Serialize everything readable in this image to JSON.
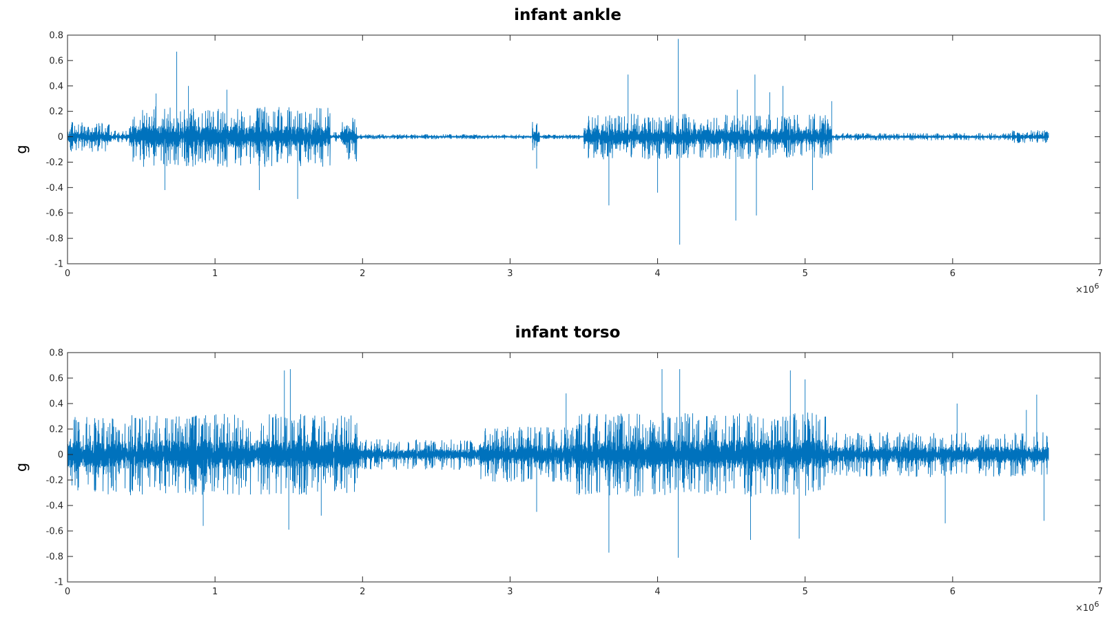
{
  "colors": {
    "series": "#0072BD",
    "axis": "#262626"
  },
  "chart_data": [
    {
      "type": "line",
      "title": "infant ankle",
      "ylabel": "g",
      "xlabel": "",
      "xlim": [
        0,
        7000000
      ],
      "ylim": [
        -1,
        0.8
      ],
      "x_multiplier": "×10",
      "x_multiplier_exp": "6",
      "xticks": [
        0,
        1,
        2,
        3,
        4,
        5,
        6,
        7
      ],
      "yticks": [
        -1,
        -0.8,
        -0.6,
        -0.4,
        -0.2,
        0,
        0.2,
        0.4,
        0.6,
        0.8
      ],
      "xtick_labels": [
        "0",
        "1",
        "2",
        "3",
        "4",
        "5",
        "6",
        "7"
      ],
      "ytick_labels": [
        "-1",
        "-0.8",
        "-0.6",
        "-0.4",
        "-0.2",
        "0",
        "0.2",
        "0.4",
        "0.6",
        "0.8"
      ],
      "data_end": 6650000,
      "envelope_segments": [
        {
          "x": [
            0,
            300000
          ],
          "amp": 0.12
        },
        {
          "x": [
            300000,
            420000
          ],
          "amp": 0.05
        },
        {
          "x": [
            420000,
            1780000
          ],
          "amp": 0.24
        },
        {
          "x": [
            1780000,
            1860000
          ],
          "amp": 0.04
        },
        {
          "x": [
            1860000,
            1960000
          ],
          "amp": 0.2
        },
        {
          "x": [
            1960000,
            3150000
          ],
          "amp": 0.02
        },
        {
          "x": [
            3150000,
            3200000
          ],
          "amp": 0.12
        },
        {
          "x": [
            3200000,
            3500000
          ],
          "amp": 0.02
        },
        {
          "x": [
            3500000,
            5180000
          ],
          "amp": 0.18
        },
        {
          "x": [
            5180000,
            6400000
          ],
          "amp": 0.03
        },
        {
          "x": [
            6400000,
            6650000
          ],
          "amp": 0.05
        }
      ],
      "spikes": [
        [
          740000,
          0.67
        ],
        [
          600000,
          0.34
        ],
        [
          660000,
          -0.42
        ],
        [
          820000,
          0.4
        ],
        [
          1560000,
          -0.49
        ],
        [
          1080000,
          0.37
        ],
        [
          1300000,
          -0.42
        ],
        [
          3180000,
          -0.25
        ],
        [
          3670000,
          -0.54
        ],
        [
          3800000,
          0.49
        ],
        [
          4140000,
          0.77
        ],
        [
          4150000,
          -0.85
        ],
        [
          4000000,
          -0.44
        ],
        [
          4530000,
          -0.66
        ],
        [
          4540000,
          0.37
        ],
        [
          4660000,
          0.49
        ],
        [
          4670000,
          -0.62
        ],
        [
          4760000,
          0.35
        ],
        [
          4850000,
          0.4
        ],
        [
          5050000,
          -0.42
        ],
        [
          5180000,
          0.28
        ]
      ]
    },
    {
      "type": "line",
      "title": "infant torso",
      "ylabel": "g",
      "xlabel": "",
      "xlim": [
        0,
        7000000
      ],
      "ylim": [
        -1,
        0.8
      ],
      "x_multiplier": "×10",
      "x_multiplier_exp": "6",
      "xticks": [
        0,
        1,
        2,
        3,
        4,
        5,
        6,
        7
      ],
      "yticks": [
        -1,
        -0.8,
        -0.6,
        -0.4,
        -0.2,
        0,
        0.2,
        0.4,
        0.6,
        0.8
      ],
      "xtick_labels": [
        "0",
        "1",
        "2",
        "3",
        "4",
        "5",
        "6",
        "7"
      ],
      "ytick_labels": [
        "-1",
        "-0.8",
        "-0.6",
        "-0.4",
        "-0.2",
        "0",
        "0.2",
        "0.4",
        "0.6",
        "0.8"
      ],
      "data_end": 6650000,
      "envelope_segments": [
        {
          "x": [
            0,
            220000
          ],
          "amp": 0.3
        },
        {
          "x": [
            220000,
            1980000
          ],
          "amp": 0.32
        },
        {
          "x": [
            1980000,
            2800000
          ],
          "amp": 0.12
        },
        {
          "x": [
            2800000,
            3450000
          ],
          "amp": 0.22
        },
        {
          "x": [
            3450000,
            5150000
          ],
          "amp": 0.33
        },
        {
          "x": [
            5150000,
            6650000
          ],
          "amp": 0.18
        }
      ],
      "spikes": [
        [
          1470000,
          0.66
        ],
        [
          1510000,
          0.67
        ],
        [
          1500000,
          -0.59
        ],
        [
          920000,
          -0.56
        ],
        [
          3180000,
          -0.45
        ],
        [
          3380000,
          0.48
        ],
        [
          3670000,
          -0.77
        ],
        [
          4030000,
          0.67
        ],
        [
          4140000,
          -0.81
        ],
        [
          4150000,
          0.67
        ],
        [
          4630000,
          -0.67
        ],
        [
          4900000,
          0.66
        ],
        [
          4960000,
          -0.66
        ],
        [
          5000000,
          0.59
        ],
        [
          5950000,
          -0.54
        ],
        [
          6030000,
          0.4
        ],
        [
          6500000,
          0.35
        ],
        [
          6570000,
          0.47
        ],
        [
          6620000,
          -0.52
        ],
        [
          1720000,
          -0.48
        ]
      ]
    }
  ]
}
